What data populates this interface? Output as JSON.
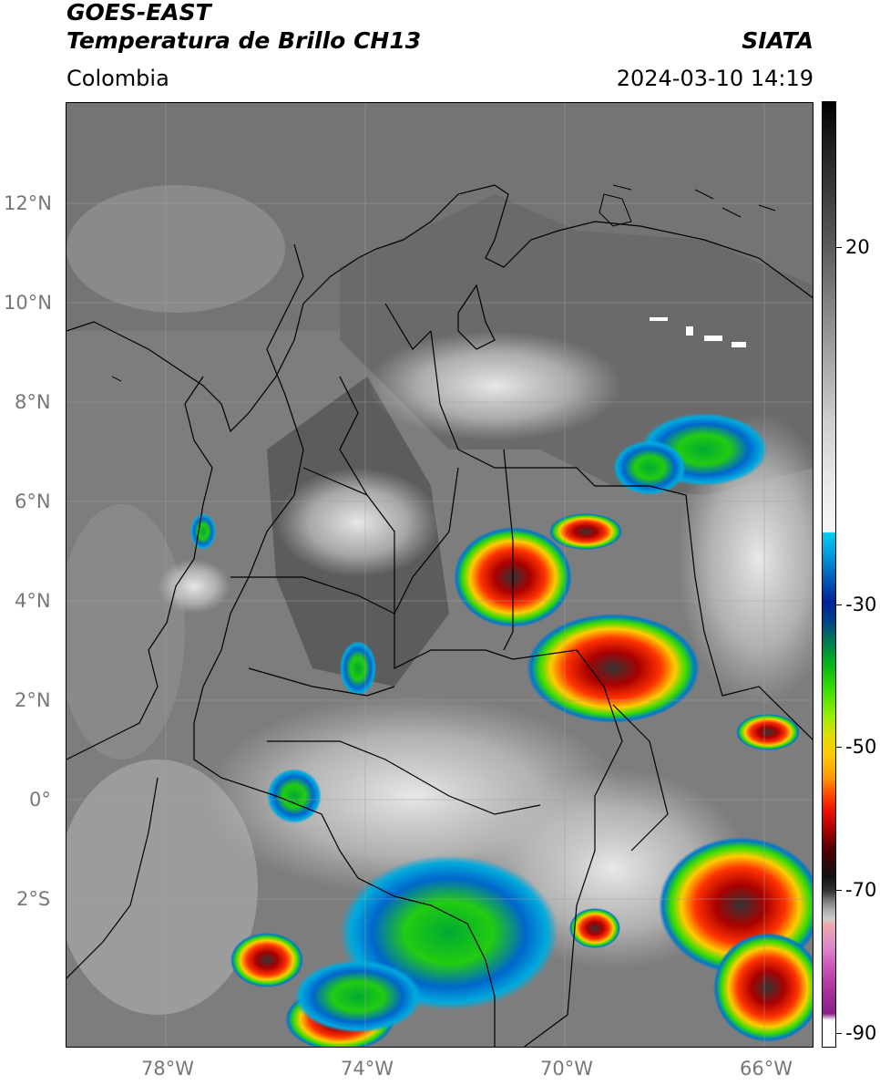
{
  "header": {
    "title_line1": "GOES-EAST",
    "title_line2": "Temperatura de Brillo CH13",
    "region": "Colombia",
    "agency": "SIATA",
    "datetime": "2024-03-10 14:19"
  },
  "map": {
    "lat_labels": [
      "12°N",
      "10°N",
      "8°N",
      "6°N",
      "4°N",
      "2°N",
      "0°",
      "2°S"
    ],
    "lon_labels": [
      "78°W",
      "74°W",
      "70°W",
      "66°W"
    ]
  },
  "colorbar": {
    "labels": [
      "20",
      "-30",
      "-50",
      "-70",
      "-90"
    ]
  },
  "colors": {
    "frame": "#000000",
    "tick_text": "#777777",
    "grid": "#a0a0a0"
  }
}
